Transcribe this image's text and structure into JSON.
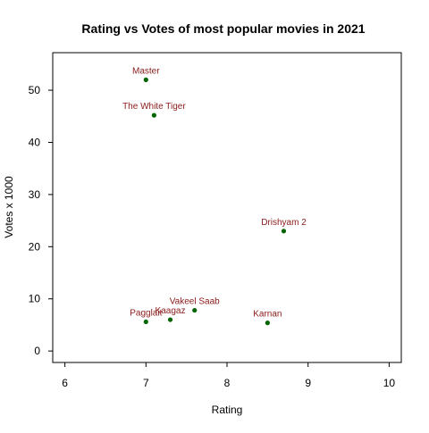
{
  "chart_data": {
    "type": "scatter",
    "title": "Rating vs Votes of most popular movies in 2021",
    "xlabel": "Rating",
    "ylabel": "Votes x 1000",
    "xlim": [
      5.85,
      10.15
    ],
    "ylim": [
      -2.2,
      57.2
    ],
    "x_ticks": [
      6,
      7,
      8,
      9,
      10
    ],
    "y_ticks": [
      0,
      10,
      20,
      30,
      40,
      50
    ],
    "grid": false,
    "legend": "none",
    "point_color": "#006400",
    "label_color": "#8b1a1a",
    "points": [
      {
        "label": "Master",
        "x": 7.0,
        "y": 52.0
      },
      {
        "label": "The White Tiger",
        "x": 7.1,
        "y": 45.2
      },
      {
        "label": "Drishyam 2",
        "x": 8.7,
        "y": 23.0
      },
      {
        "label": "Vakeel Saab",
        "x": 7.6,
        "y": 7.8
      },
      {
        "label": "Karnan",
        "x": 8.5,
        "y": 5.4
      },
      {
        "label": "Pagglait",
        "x": 7.0,
        "y": 5.6
      },
      {
        "label": "Kaagaz",
        "x": 7.3,
        "y": 6.0
      }
    ]
  }
}
